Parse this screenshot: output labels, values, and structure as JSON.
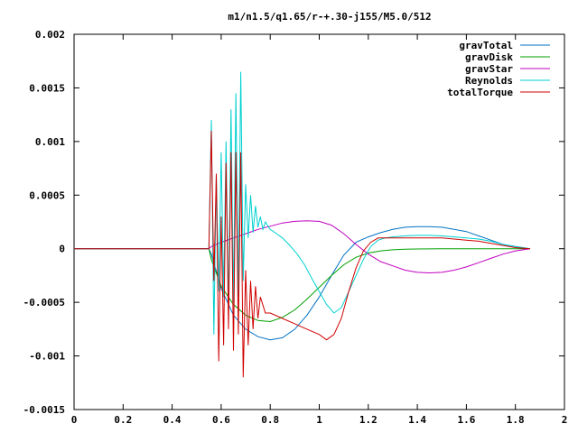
{
  "chart_data": {
    "type": "line",
    "title": "m1/n1.5/q1.65/r-+.30-j155/M5.0/512",
    "xlabel": "",
    "ylabel": "",
    "xlim": [
      0,
      2
    ],
    "ylim": [
      -0.0015,
      0.002
    ],
    "xticks": [
      "0",
      "0.2",
      "0.4",
      "0.6",
      "0.8",
      "1",
      "1.2",
      "1.4",
      "1.6",
      "1.8",
      "2"
    ],
    "yticks": [
      "0.002",
      "0.0015",
      "0.001",
      "0.0005",
      "0",
      "-0.0005",
      "-0.001",
      "-0.0015"
    ],
    "legend_position": "top-right",
    "grid": false,
    "series": [
      {
        "name": "gravTotal",
        "color": "#0072c4",
        "x": [
          0,
          0.55,
          0.56,
          0.6,
          0.65,
          0.7,
          0.75,
          0.8,
          0.85,
          0.9,
          0.95,
          1.0,
          1.05,
          1.1,
          1.15,
          1.2,
          1.25,
          1.3,
          1.35,
          1.4,
          1.45,
          1.5,
          1.55,
          1.6,
          1.65,
          1.7,
          1.75,
          1.8,
          1.86
        ],
        "y": [
          0,
          0,
          -5e-05,
          -0.00037,
          -0.00062,
          -0.00075,
          -0.00082,
          -0.00085,
          -0.00083,
          -0.00075,
          -0.00062,
          -0.00045,
          -0.00025,
          -6e-05,
          6e-05,
          0.00011,
          0.00015,
          0.00018,
          0.0002,
          0.000205,
          0.000205,
          0.0002,
          0.00018,
          0.00016,
          0.00012,
          8e-05,
          4e-05,
          2e-05,
          0
        ]
      },
      {
        "name": "gravDisk",
        "color": "#00a000",
        "x": [
          0,
          0.55,
          0.56,
          0.6,
          0.65,
          0.7,
          0.75,
          0.8,
          0.85,
          0.9,
          0.95,
          1.0,
          1.05,
          1.1,
          1.15,
          1.2,
          1.25,
          1.3,
          1.35,
          1.4,
          1.5,
          1.6,
          1.7,
          1.8,
          1.86
        ],
        "y": [
          0,
          0,
          -0.0001,
          -0.00035,
          -0.00052,
          -0.00062,
          -0.00067,
          -0.00068,
          -0.00064,
          -0.00057,
          -0.00047,
          -0.00036,
          -0.00025,
          -0.00015,
          -8e-05,
          -4e-05,
          -2e-05,
          -1e-05,
          -5e-06,
          -2e-06,
          0,
          0,
          0,
          0,
          0
        ]
      },
      {
        "name": "gravStar",
        "color": "#c000c0",
        "x": [
          0,
          0.55,
          0.56,
          0.6,
          0.65,
          0.7,
          0.75,
          0.8,
          0.85,
          0.9,
          0.95,
          1.0,
          1.05,
          1.1,
          1.15,
          1.2,
          1.25,
          1.3,
          1.35,
          1.4,
          1.45,
          1.5,
          1.55,
          1.6,
          1.65,
          1.7,
          1.75,
          1.8,
          1.86
        ],
        "y": [
          0,
          0,
          2e-05,
          6e-05,
          0.0001,
          0.00014,
          0.00018,
          0.00021,
          0.00024,
          0.000255,
          0.00026,
          0.000255,
          0.00022,
          0.00014,
          4e-05,
          -5e-05,
          -0.00012,
          -0.00016,
          -0.0002,
          -0.00022,
          -0.000225,
          -0.00022,
          -0.0002,
          -0.00017,
          -0.00013,
          -9e-05,
          -5e-05,
          -2e-05,
          0
        ]
      },
      {
        "name": "Reynolds",
        "color": "#00d0d0",
        "x": [
          0,
          0.55,
          0.56,
          0.57,
          0.58,
          0.59,
          0.6,
          0.61,
          0.62,
          0.63,
          0.64,
          0.65,
          0.66,
          0.67,
          0.68,
          0.69,
          0.7,
          0.71,
          0.72,
          0.73,
          0.74,
          0.75,
          0.76,
          0.77,
          0.78,
          0.8,
          0.82,
          0.85,
          0.88,
          0.91,
          0.94,
          0.97,
          1.0,
          1.03,
          1.06,
          1.09,
          1.12,
          1.15,
          1.18,
          1.21,
          1.24,
          1.27,
          1.3,
          1.35,
          1.4,
          1.45,
          1.5,
          1.55,
          1.6,
          1.65,
          1.7,
          1.75,
          1.8,
          1.86
        ],
        "y": [
          0,
          0,
          0.0012,
          -0.0008,
          0.0007,
          -0.0004,
          0.0009,
          -0.00045,
          0.001,
          -0.00055,
          0.0013,
          -0.0005,
          0.00145,
          -0.00045,
          0.00165,
          -0.0003,
          0.0006,
          0.0001,
          0.0005,
          0.00015,
          0.0004,
          0.0002,
          0.0003,
          0.00018,
          0.00025,
          0.00018,
          0.00015,
          0.0001,
          3e-05,
          -5e-05,
          -0.00015,
          -0.00028,
          -0.0004,
          -0.00052,
          -0.0006,
          -0.00055,
          -0.0004,
          -0.00025,
          -0.0001,
          2e-05,
          8e-05,
          0.0001,
          0.00011,
          0.00012,
          0.000125,
          0.000125,
          0.00012,
          0.00011,
          0.0001,
          9e-05,
          7e-05,
          4e-05,
          2e-05,
          0
        ]
      },
      {
        "name": "totalTorque",
        "color": "#d00000",
        "x": [
          0,
          0.55,
          0.56,
          0.57,
          0.58,
          0.59,
          0.6,
          0.61,
          0.62,
          0.63,
          0.64,
          0.65,
          0.66,
          0.67,
          0.68,
          0.69,
          0.7,
          0.71,
          0.72,
          0.73,
          0.74,
          0.75,
          0.76,
          0.78,
          0.8,
          0.85,
          0.9,
          0.95,
          1.0,
          1.03,
          1.06,
          1.09,
          1.12,
          1.15,
          1.18,
          1.21,
          1.24,
          1.27,
          1.3,
          1.35,
          1.4,
          1.45,
          1.5,
          1.55,
          1.6,
          1.65,
          1.7,
          1.75,
          1.8,
          1.86
        ],
        "y": [
          0,
          0,
          0.0011,
          -0.0003,
          0.0007,
          -0.00105,
          0.0003,
          -0.0009,
          0.0008,
          -0.00075,
          0.0009,
          -0.00095,
          0.0009,
          -0.0008,
          0.0009,
          -0.0012,
          -0.0002,
          -0.0009,
          -0.0003,
          -0.00075,
          -0.00035,
          -0.00065,
          -0.00045,
          -0.0006,
          -0.0006,
          -0.00065,
          -0.0007,
          -0.00075,
          -0.0008,
          -0.00085,
          -0.0008,
          -0.00065,
          -0.0004,
          -0.00018,
          -2e-05,
          6e-05,
          0.0001,
          0.0001,
          0.0001,
          0.0001,
          0.0001,
          0.0001,
          0.0001,
          9e-05,
          8e-05,
          7e-05,
          5e-05,
          3e-05,
          1e-05,
          0
        ]
      }
    ]
  }
}
